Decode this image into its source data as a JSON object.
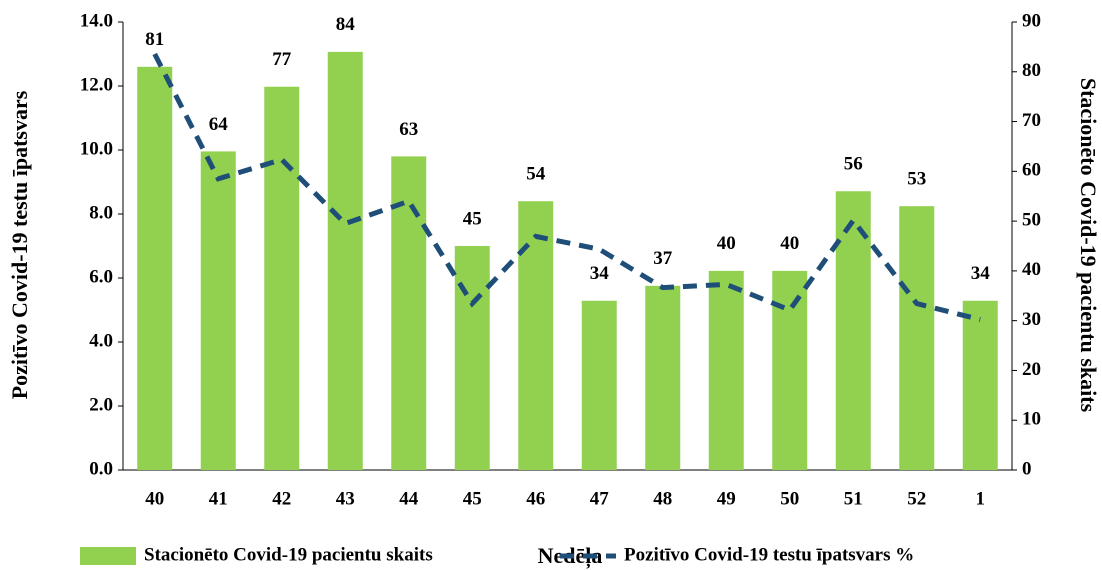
{
  "chart_data": {
    "type": "combo",
    "categories": [
      "40",
      "41",
      "42",
      "43",
      "44",
      "45",
      "46",
      "47",
      "48",
      "49",
      "50",
      "51",
      "52",
      "1"
    ],
    "xlabel": "Nedēļa",
    "ylabel": "Pozitīvo Covid-19 testu īpatsvars",
    "y2label": "Stacionēto Covid-19 pacientu skaits",
    "ylim": [
      0,
      14
    ],
    "yticks": [
      {
        "value": 0,
        "label": "0.0"
      },
      {
        "value": 2,
        "label": "2.0"
      },
      {
        "value": 4,
        "label": "4.0"
      },
      {
        "value": 6,
        "label": "6.0"
      },
      {
        "value": 8,
        "label": "8.0"
      },
      {
        "value": 10,
        "label": "10.0"
      },
      {
        "value": 12,
        "label": "12.0"
      },
      {
        "value": 14,
        "label": "14.0"
      }
    ],
    "y2lim": [
      0,
      90
    ],
    "y2ticks": [
      0,
      10,
      20,
      30,
      40,
      50,
      60,
      70,
      80,
      90
    ],
    "series": [
      {
        "name": "Stacionēto Covid-19 pacientu skaits",
        "type": "bar",
        "axis": "y2",
        "color": "#92d050",
        "values": [
          81,
          64,
          77,
          84,
          63,
          45,
          54,
          34,
          37,
          40,
          40,
          56,
          53,
          34
        ]
      },
      {
        "name": "Pozitīvo Covid-19 testu īpatsvars %",
        "type": "line",
        "axis": "y",
        "color": "#1f4e79",
        "dashed": true,
        "values": [
          13.0,
          9.1,
          9.7,
          7.7,
          8.4,
          5.2,
          7.3,
          6.9,
          5.7,
          5.8,
          5.0,
          7.8,
          5.2,
          4.7
        ]
      }
    ],
    "legend": "bottom"
  }
}
